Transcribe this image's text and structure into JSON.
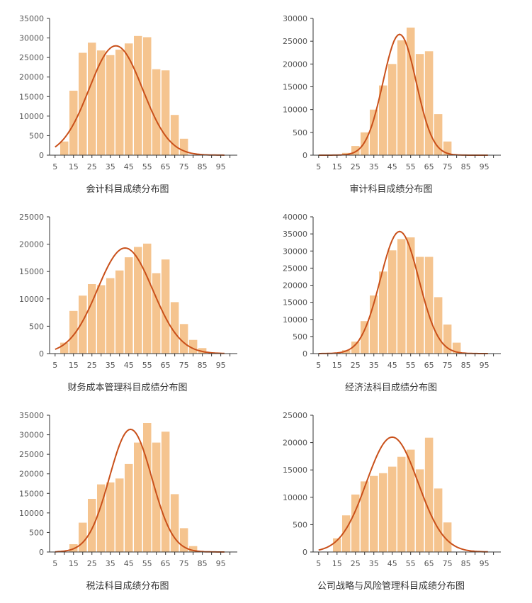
{
  "colors": {
    "bar": "#F5C48F",
    "curve": "#C9501A",
    "axis": "#333333"
  },
  "chart_data": [
    {
      "type": "bar",
      "title": "会计科目成绩分布图",
      "xlabel": "",
      "ylabel": "",
      "x_ticks": [
        "5",
        "15",
        "25",
        "35",
        "45",
        "55",
        "65",
        "75",
        "85",
        "95"
      ],
      "y_ticks": [
        "0",
        "500",
        "10000",
        "15000",
        "20000",
        "25000",
        "30000",
        "35000"
      ],
      "bins": [
        10,
        15,
        20,
        25,
        30,
        35,
        40,
        45,
        50,
        55,
        60,
        65,
        70,
        75,
        80,
        85,
        90,
        95
      ],
      "values": [
        3500,
        16500,
        26200,
        28800,
        26800,
        25600,
        27000,
        28600,
        30500,
        30200,
        22000,
        21700,
        10300,
        4200,
        0,
        0,
        0,
        0
      ],
      "curve": {
        "name": "normal fit",
        "peak_x": 38,
        "peak_y": 28000,
        "sigma": 14.5
      },
      "ylim": [
        0,
        35000
      ]
    },
    {
      "type": "bar",
      "title": "审计科目成绩分布图",
      "xlabel": "",
      "ylabel": "",
      "x_ticks": [
        "5",
        "15",
        "25",
        "35",
        "45",
        "55",
        "65",
        "75",
        "85",
        "95"
      ],
      "y_ticks": [
        "0",
        "500",
        "10000",
        "15000",
        "20000",
        "25000",
        "30000"
      ],
      "bins": [
        10,
        15,
        20,
        25,
        30,
        35,
        40,
        45,
        50,
        55,
        60,
        65,
        70,
        75,
        80,
        85,
        90,
        95
      ],
      "values": [
        0,
        0,
        500,
        2000,
        5000,
        10000,
        15300,
        20000,
        25200,
        28000,
        22200,
        22800,
        9000,
        3000,
        0,
        0,
        0,
        0
      ],
      "curve": {
        "name": "normal fit",
        "peak_x": 49,
        "peak_y": 26500,
        "sigma": 9
      },
      "ylim": [
        0,
        30000
      ]
    },
    {
      "type": "bar",
      "title": "财务成本管理科目成绩分布图",
      "xlabel": "",
      "ylabel": "",
      "x_ticks": [
        "5",
        "15",
        "25",
        "35",
        "45",
        "55",
        "65",
        "75",
        "85",
        "95"
      ],
      "y_ticks": [
        "0",
        "500",
        "10000",
        "15000",
        "20000",
        "25000"
      ],
      "bins": [
        10,
        15,
        20,
        25,
        30,
        35,
        40,
        45,
        50,
        55,
        60,
        65,
        70,
        75,
        80,
        85,
        90,
        95
      ],
      "values": [
        2000,
        7800,
        10600,
        12700,
        12500,
        13800,
        15200,
        17600,
        19500,
        20100,
        14700,
        17200,
        9400,
        5400,
        2500,
        1000,
        0,
        0
      ],
      "curve": {
        "name": "normal fit",
        "peak_x": 43,
        "peak_y": 19300,
        "sigma": 15
      },
      "ylim": [
        0,
        25000
      ]
    },
    {
      "type": "bar",
      "title": "经济法科目成绩分布图",
      "xlabel": "",
      "ylabel": "",
      "x_ticks": [
        "5",
        "15",
        "25",
        "35",
        "45",
        "55",
        "65",
        "75",
        "85",
        "95"
      ],
      "y_ticks": [
        "0",
        "500",
        "10000",
        "15000",
        "20000",
        "25000",
        "30000",
        "35000",
        "40000"
      ],
      "bins": [
        10,
        15,
        20,
        25,
        30,
        35,
        40,
        45,
        50,
        55,
        60,
        65,
        70,
        75,
        80,
        85,
        90,
        95
      ],
      "values": [
        0,
        0,
        1000,
        3500,
        9500,
        17000,
        24000,
        30200,
        33500,
        34000,
        28300,
        28300,
        16500,
        8500,
        3200,
        0,
        0,
        0
      ],
      "curve": {
        "name": "normal fit",
        "peak_x": 49,
        "peak_y": 35700,
        "sigma": 10.5
      },
      "ylim": [
        0,
        40000
      ]
    },
    {
      "type": "bar",
      "title": "税法科目成绩分布图",
      "xlabel": "",
      "ylabel": "",
      "x_ticks": [
        "5",
        "15",
        "25",
        "35",
        "45",
        "55",
        "65",
        "75",
        "85",
        "95"
      ],
      "y_ticks": [
        "0",
        "500",
        "10000",
        "15000",
        "20000",
        "25000",
        "30000",
        "35000"
      ],
      "bins": [
        10,
        15,
        20,
        25,
        30,
        35,
        40,
        45,
        50,
        55,
        60,
        65,
        70,
        75,
        80,
        85,
        90,
        95
      ],
      "values": [
        0,
        2000,
        7500,
        13600,
        17300,
        17800,
        18800,
        22500,
        28000,
        33000,
        28000,
        30800,
        14800,
        6100,
        1500,
        0,
        0,
        0
      ],
      "curve": {
        "name": "normal fit",
        "peak_x": 46,
        "peak_y": 31400,
        "sigma": 11.5
      },
      "ylim": [
        0,
        35000
      ]
    },
    {
      "type": "bar",
      "title": "公司战略与风险管理科目成绩分布图",
      "xlabel": "",
      "ylabel": "",
      "x_ticks": [
        "5",
        "15",
        "25",
        "35",
        "45",
        "55",
        "65",
        "75",
        "85",
        "95"
      ],
      "y_ticks": [
        "0",
        "500",
        "10000",
        "15000",
        "20000",
        "25000"
      ],
      "bins": [
        10,
        15,
        20,
        25,
        30,
        35,
        40,
        45,
        50,
        55,
        60,
        65,
        70,
        75,
        80,
        85,
        90,
        95
      ],
      "values": [
        0,
        2500,
        6700,
        10500,
        12900,
        13900,
        14400,
        15600,
        17400,
        18700,
        15100,
        20900,
        11600,
        5400,
        0,
        0,
        0,
        0
      ],
      "curve": {
        "name": "normal fit",
        "peak_x": 45,
        "peak_y": 21000,
        "sigma": 14
      },
      "ylim": [
        0,
        25000
      ]
    }
  ]
}
